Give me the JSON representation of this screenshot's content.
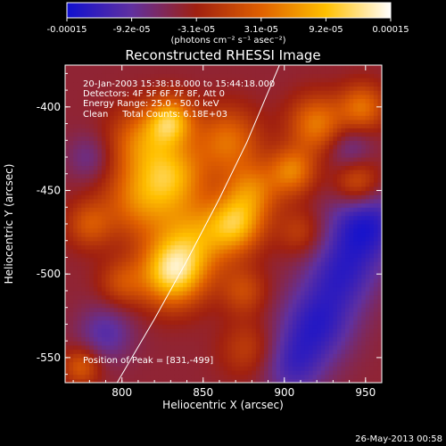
{
  "chart_data": {
    "type": "heatmap",
    "title": "Reconstructed RHESSI Image",
    "xlabel": "Heliocentric X (arcsec)",
    "ylabel": "Heliocentric Y (arcsec)",
    "xlim": [
      765,
      960
    ],
    "ylim": [
      -565,
      -375
    ],
    "x_ticks": [
      "800",
      "850",
      "900",
      "950"
    ],
    "y_ticks": [
      "-400",
      "-450",
      "-500",
      "-550"
    ],
    "x_tick_values": [
      800,
      850,
      900,
      950
    ],
    "y_tick_values": [
      -400,
      -450,
      -500,
      -550
    ],
    "colorbar": {
      "min": -0.00015,
      "max": 0.00015,
      "tick_labels": [
        "-0.00015",
        "-9.2e-05",
        "-3.1e-05",
        "3.1e-05",
        "9.2e-05",
        "0.00015"
      ],
      "unit_label": "(photons cm⁻² s⁻¹ asec⁻²)",
      "colors": [
        "#1010d0",
        "#6030a0",
        "#a02010",
        "#e06000",
        "#ffc000",
        "#ffffff"
      ]
    },
    "annotations": {
      "time_range": "20-Jan-2003 15:38:18.000 to 15:44:18.000",
      "detectors": "Detectors: 4F 5F 6F 7F 8F, Att 0",
      "energy": "Energy Range: 25.0 - 50.0 keV",
      "method": "Clean     Total Counts: 6.18E+03",
      "peak": "Position of Peak = [831,-499]"
    },
    "peak_position": [
      831,
      -499
    ],
    "limb": [
      [
        797,
        -565
      ],
      [
        820,
        -527
      ],
      [
        840,
        -492
      ],
      [
        860,
        -455
      ],
      [
        877,
        -421
      ],
      [
        897,
        -375
      ]
    ],
    "sources": [
      {
        "x": 831,
        "y": -499,
        "amp": 1.0,
        "r": 14
      },
      {
        "x": 845,
        "y": -478,
        "amp": 0.6,
        "r": 16
      },
      {
        "x": 870,
        "y": -470,
        "amp": 0.75,
        "r": 12
      },
      {
        "x": 880,
        "y": -450,
        "amp": 0.55,
        "r": 12
      },
      {
        "x": 812,
        "y": -455,
        "amp": 0.6,
        "r": 16
      },
      {
        "x": 832,
        "y": -440,
        "amp": 0.65,
        "r": 14
      },
      {
        "x": 812,
        "y": -420,
        "amp": 0.55,
        "r": 14
      },
      {
        "x": 830,
        "y": -408,
        "amp": 0.8,
        "r": 10
      },
      {
        "x": 865,
        "y": -420,
        "amp": 0.55,
        "r": 14
      },
      {
        "x": 905,
        "y": -438,
        "amp": 0.6,
        "r": 10
      },
      {
        "x": 920,
        "y": -410,
        "amp": 0.6,
        "r": 12
      },
      {
        "x": 948,
        "y": -400,
        "amp": 0.55,
        "r": 10
      },
      {
        "x": 945,
        "y": -445,
        "amp": 0.5,
        "r": 10
      },
      {
        "x": 780,
        "y": -470,
        "amp": 0.4,
        "r": 10
      },
      {
        "x": 775,
        "y": -555,
        "amp": 0.45,
        "r": 8
      },
      {
        "x": 800,
        "y": -505,
        "amp": 0.35,
        "r": 10
      },
      {
        "x": 878,
        "y": -545,
        "amp": 0.3,
        "r": 12
      },
      {
        "x": 875,
        "y": -510,
        "amp": 0.35,
        "r": 10
      },
      {
        "x": 910,
        "y": -475,
        "amp": 0.3,
        "r": 10
      },
      {
        "x": 950,
        "y": -470,
        "amp": -0.6,
        "r": 16
      },
      {
        "x": 920,
        "y": -530,
        "amp": -0.5,
        "r": 16
      },
      {
        "x": 935,
        "y": -500,
        "amp": -0.45,
        "r": 16
      },
      {
        "x": 790,
        "y": -535,
        "amp": -0.35,
        "r": 12
      },
      {
        "x": 905,
        "y": -555,
        "amp": -0.4,
        "r": 14
      },
      {
        "x": 780,
        "y": -430,
        "amp": -0.25,
        "r": 10
      },
      {
        "x": 940,
        "y": -425,
        "amp": -0.3,
        "r": 10
      }
    ]
  },
  "footer": {
    "date": "26-May-2013 00:58"
  }
}
